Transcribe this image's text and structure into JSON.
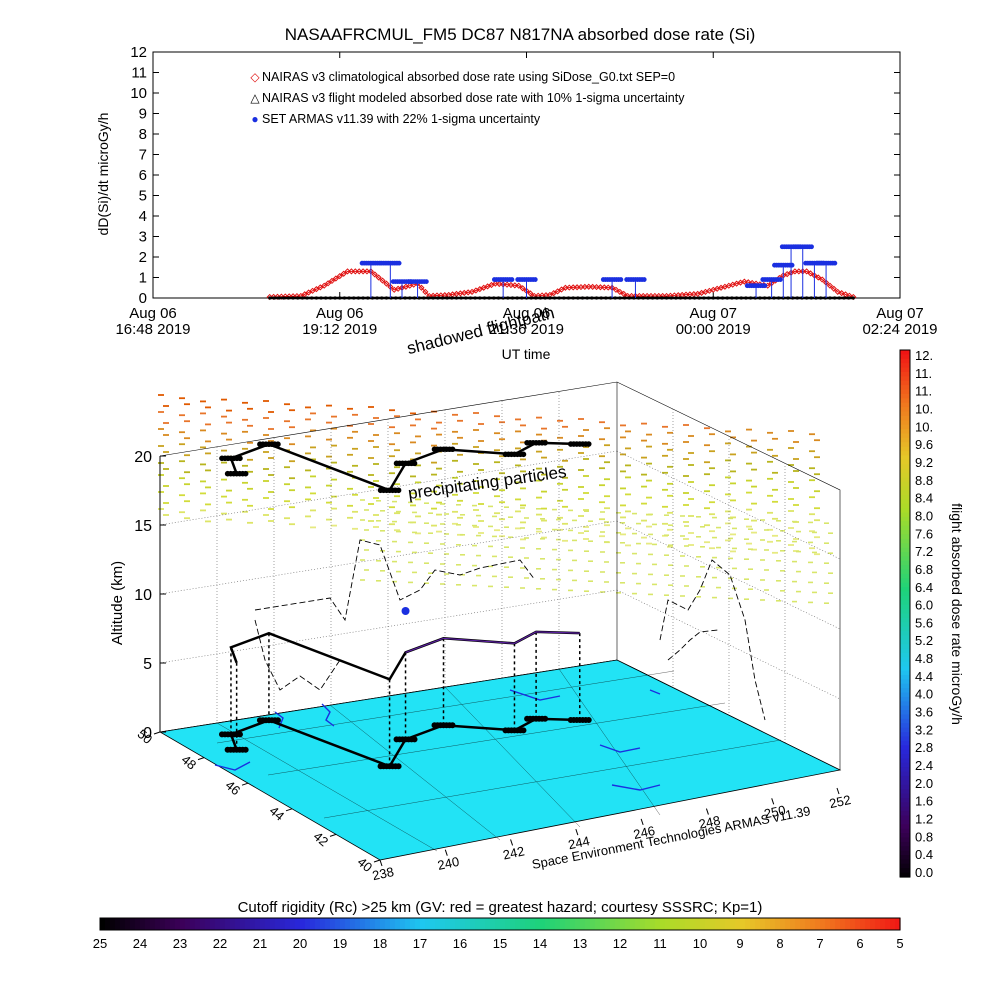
{
  "colors": {
    "nairas_clim": "#e01010",
    "nairas_flight": "#000000",
    "armas": "#1a2fe0",
    "ground_plane": "#22e3f5",
    "flight_track": "#000000"
  },
  "chart_data": [
    {
      "type": "line",
      "title": "NASAAFRCMUL_FM5 DC87 N817NA absorbed dose rate (Si)",
      "xlabel": "UT time",
      "ylabel": "dD(Si)/dt microGy/h",
      "ylim": [
        0,
        12
      ],
      "yticks": [
        "0",
        "1",
        "2",
        "3",
        "4",
        "5",
        "6",
        "7",
        "8",
        "9",
        "10",
        "11",
        "12"
      ],
      "xticks": [
        {
          "date": "Aug 06",
          "time": "16:48 2019"
        },
        {
          "date": "Aug 06",
          "time": "19:12 2019"
        },
        {
          "date": "Aug 06",
          "time": "21:36 2019"
        },
        {
          "date": "Aug 07",
          "time": "00:00 2019"
        },
        {
          "date": "Aug 07",
          "time": "02:24 2019"
        }
      ],
      "xlim_hours": [
        0,
        9.6
      ],
      "legend": [
        {
          "key": "nairas_clim",
          "symbol": "◇",
          "label": "NAIRAS v3 climatological absorbed dose rate using SiDose_G0.txt SEP=0"
        },
        {
          "key": "nairas_flight",
          "symbol": "△",
          "label": "NAIRAS v3 flight modeled absorbed dose rate with 10% 1-sigma uncertainty"
        },
        {
          "key": "armas",
          "symbol": "●",
          "label": "SET ARMAS v11.39 with 22% 1-sigma uncertainty"
        }
      ],
      "series": [
        {
          "key": "nairas_clim",
          "x": [
            1.5,
            1.9,
            2.2,
            2.5,
            2.8,
            3.1,
            3.4,
            3.55,
            3.8,
            4.1,
            4.4,
            4.7,
            4.9,
            5.1,
            5.3,
            5.6,
            5.9,
            6.1,
            6.3,
            6.6,
            6.8,
            7.0,
            7.3,
            7.6,
            7.9,
            8.1,
            8.25,
            8.4,
            8.6,
            8.8,
            9.0
          ],
          "y": [
            0.05,
            0.1,
            0.6,
            1.3,
            1.3,
            0.4,
            0.7,
            0.1,
            0.15,
            0.3,
            0.7,
            0.6,
            0.1,
            0.15,
            0.5,
            0.55,
            0.5,
            0.1,
            0.1,
            0.1,
            0.15,
            0.2,
            0.5,
            0.8,
            0.6,
            1.1,
            1.3,
            1.3,
            0.9,
            0.3,
            0.05
          ]
        },
        {
          "key": "nairas_flight",
          "x": [
            1.5,
            9.0
          ],
          "y": [
            0.0,
            0.0
          ]
        },
        {
          "key": "armas",
          "x": [
            2.8,
            3.05,
            3.2,
            3.4,
            4.5,
            4.8,
            5.9,
            6.2,
            7.75,
            7.95,
            8.1,
            8.2,
            8.35,
            8.5,
            8.65
          ],
          "y": [
            1.7,
            1.7,
            0.8,
            0.8,
            0.9,
            0.9,
            0.9,
            0.9,
            0.6,
            0.9,
            1.6,
            2.5,
            2.5,
            1.7,
            1.7
          ]
        }
      ]
    },
    {
      "type": "scatter",
      "xlabel": "Space Environment Technologies ARMAS v11.39",
      "ylabel": "Altitude (km)",
      "zticks": [
        "0",
        "5",
        "10",
        "15",
        "20"
      ],
      "lon_ticks": [
        "238",
        "240",
        "242",
        "244",
        "246",
        "248",
        "250",
        "252"
      ],
      "lat_ticks": [
        "40",
        "42",
        "44",
        "46",
        "48",
        "50"
      ],
      "annotations": [
        "precipitating particles",
        "shadowed flightpath"
      ],
      "colorbar_right": {
        "label": "flight absorbed dose rate microGy/h",
        "ticks": [
          "12.",
          "11.",
          "11.",
          "10.",
          "10.",
          "9.6",
          "9.2",
          "8.8",
          "8.4",
          "8.0",
          "7.6",
          "7.2",
          "6.8",
          "6.4",
          "6.0",
          "5.6",
          "5.2",
          "4.8",
          "4.4",
          "4.0",
          "3.6",
          "3.2",
          "2.8",
          "2.4",
          "2.0",
          "1.6",
          "1.2",
          "0.8",
          "0.4",
          "0.0"
        ]
      },
      "colorbar_bottom": {
        "label": "Cutoff rigidity (Rc) >25 km (GV: red = greatest hazard; courtesy SSSRC; Kp=1)",
        "ticks": [
          "25",
          "24",
          "23",
          "22",
          "21",
          "20",
          "19",
          "18",
          "17",
          "16",
          "15",
          "14",
          "13",
          "12",
          "11",
          "10",
          "9",
          "8",
          "7",
          "6",
          "5"
        ]
      },
      "flight_path": {
        "lon": [
          239.0,
          239.5,
          241.0,
          242.0,
          243.5,
          245.0,
          246.5,
          247.5,
          248.5
        ],
        "lat": [
          48.0,
          49.0,
          49.5,
          45.5,
          47.0,
          47.5,
          46.5,
          47.0,
          46.5
        ]
      }
    }
  ]
}
